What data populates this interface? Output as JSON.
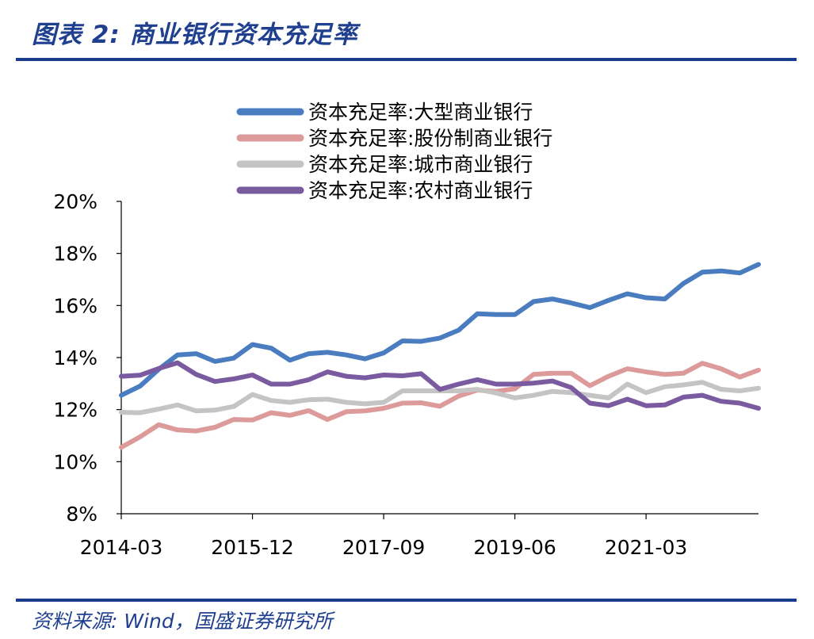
{
  "header": {
    "title": "图表 2:  商业银行资本充足率"
  },
  "footer": {
    "source": "资料来源: Wind，国盛证券研究所"
  },
  "chart_data": {
    "type": "line",
    "title": "",
    "xlabel": "",
    "ylabel": "",
    "ylim": [
      0.08,
      0.2
    ],
    "ytick_values": [
      0.08,
      0.1,
      0.12,
      0.14,
      0.16,
      0.18,
      0.2
    ],
    "ytick_labels": [
      "8%",
      "10%",
      "12%",
      "14%",
      "16%",
      "18%",
      "20%"
    ],
    "xtick_labels": [
      "2014-03",
      "2015-12",
      "2017-09",
      "2019-06",
      "2021-03"
    ],
    "xtick_positions": [
      0,
      7,
      14,
      21,
      28
    ],
    "grid": false,
    "legend_position": "top",
    "categories": [
      "2014-03",
      "2014-06",
      "2014-09",
      "2014-12",
      "2015-03",
      "2015-06",
      "2015-09",
      "2015-12",
      "2016-03",
      "2016-06",
      "2016-09",
      "2016-12",
      "2017-03",
      "2017-06",
      "2017-09",
      "2017-12",
      "2018-03",
      "2018-06",
      "2018-09",
      "2018-12",
      "2019-03",
      "2019-06",
      "2019-09",
      "2019-12",
      "2020-03",
      "2020-06",
      "2020-09",
      "2020-12",
      "2021-03",
      "2021-06",
      "2021-09",
      "2021-12",
      "2022-03",
      "2022-06",
      "2022-09"
    ],
    "series": [
      {
        "name": "资本充足率:大型商业银行",
        "color": "#4a7cc0",
        "values": [
          0.1255,
          0.129,
          0.1355,
          0.141,
          0.1415,
          0.1385,
          0.1398,
          0.145,
          0.1436,
          0.139,
          0.1415,
          0.142,
          0.141,
          0.1395,
          0.1418,
          0.1464,
          0.1462,
          0.1475,
          0.1505,
          0.1568,
          0.1565,
          0.1565,
          0.1615,
          0.1625,
          0.161,
          0.1592,
          0.162,
          0.1645,
          0.163,
          0.1625,
          0.1685,
          0.1728,
          0.1733,
          0.1725,
          0.1758
        ]
      },
      {
        "name": "资本充足率:股份制商业银行",
        "color": "#dc9a9a",
        "values": [
          0.1055,
          0.1095,
          0.1142,
          0.1122,
          0.1118,
          0.1132,
          0.1162,
          0.116,
          0.1188,
          0.1178,
          0.1196,
          0.1162,
          0.1192,
          0.1195,
          0.1205,
          0.1225,
          0.1226,
          0.1213,
          0.1252,
          0.1275,
          0.127,
          0.128,
          0.1335,
          0.134,
          0.134,
          0.1292,
          0.1328,
          0.1357,
          0.1345,
          0.1335,
          0.134,
          0.1378,
          0.1357,
          0.1325,
          0.1352
        ]
      },
      {
        "name": "资本充足率:城市商业银行",
        "color": "#c4c4c4",
        "values": [
          0.119,
          0.1188,
          0.1202,
          0.1218,
          0.1195,
          0.1198,
          0.1212,
          0.1258,
          0.1235,
          0.1228,
          0.1238,
          0.124,
          0.1228,
          0.1222,
          0.1228,
          0.1272,
          0.1272,
          0.1272,
          0.1272,
          0.1278,
          0.1264,
          0.1245,
          0.1255,
          0.127,
          0.1265,
          0.1255,
          0.1245,
          0.1298,
          0.1265,
          0.1288,
          0.1295,
          0.1305,
          0.1278,
          0.1272,
          0.1282
        ]
      },
      {
        "name": "资本充足率:农村商业银行",
        "color": "#7a5ba0",
        "values": [
          0.1328,
          0.1332,
          0.1358,
          0.138,
          0.1335,
          0.1308,
          0.1318,
          0.1333,
          0.1298,
          0.1298,
          0.1315,
          0.1345,
          0.1328,
          0.1322,
          0.1333,
          0.133,
          0.1338,
          0.1278,
          0.1298,
          0.1315,
          0.1298,
          0.1298,
          0.1302,
          0.131,
          0.1285,
          0.1225,
          0.1215,
          0.124,
          0.1215,
          0.1218,
          0.1248,
          0.1255,
          0.1232,
          0.1225,
          0.1205
        ]
      }
    ]
  }
}
